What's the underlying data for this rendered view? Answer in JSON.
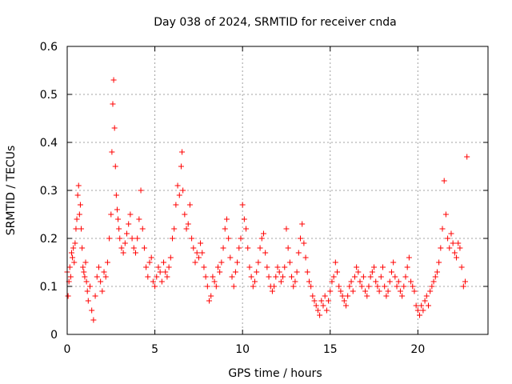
{
  "chart_data": {
    "type": "scatter",
    "title": "Day 038 of 2024, SRMTID for receiver cnda",
    "xlabel": "GPS time / hours",
    "ylabel": "SRMTID / TECUs",
    "xlim": [
      0,
      24
    ],
    "ylim": [
      0,
      0.6
    ],
    "xticks": [
      0,
      5,
      10,
      15,
      20
    ],
    "xtick_labels": [
      "0",
      "5",
      "10",
      "15",
      "20"
    ],
    "yticks": [
      0,
      0.1,
      0.2,
      0.3,
      0.4,
      0.5,
      0.6
    ],
    "ytick_labels": [
      "0",
      "0.1",
      "0.2",
      "0.3",
      "0.4",
      "0.5",
      "0.6"
    ],
    "grid": true,
    "marker": "+",
    "color": "#ff0000",
    "series": [
      {
        "name": "SRMTID",
        "x": [
          0.0,
          0.05,
          0.1,
          0.15,
          0.2,
          0.25,
          0.3,
          0.35,
          0.4,
          0.45,
          0.5,
          0.55,
          0.6,
          0.65,
          0.7,
          0.75,
          0.8,
          0.85,
          0.9,
          0.95,
          1.0,
          1.05,
          1.1,
          1.15,
          1.2,
          1.3,
          1.4,
          1.5,
          1.6,
          1.7,
          1.8,
          1.9,
          2.0,
          2.1,
          2.2,
          2.3,
          2.4,
          2.5,
          2.55,
          2.6,
          2.65,
          2.7,
          2.75,
          2.8,
          2.85,
          2.9,
          2.95,
          3.0,
          3.1,
          3.2,
          3.3,
          3.4,
          3.5,
          3.6,
          3.7,
          3.8,
          3.9,
          4.0,
          4.1,
          4.2,
          4.3,
          4.4,
          4.5,
          4.6,
          4.7,
          4.8,
          4.9,
          5.0,
          5.1,
          5.2,
          5.3,
          5.4,
          5.5,
          5.6,
          5.7,
          5.8,
          5.9,
          6.0,
          6.1,
          6.2,
          6.3,
          6.4,
          6.5,
          6.55,
          6.6,
          6.7,
          6.8,
          6.9,
          7.0,
          7.1,
          7.2,
          7.3,
          7.4,
          7.5,
          7.6,
          7.7,
          7.8,
          7.9,
          8.0,
          8.1,
          8.2,
          8.3,
          8.4,
          8.5,
          8.6,
          8.7,
          8.8,
          8.9,
          9.0,
          9.1,
          9.2,
          9.3,
          9.4,
          9.5,
          9.6,
          9.7,
          9.8,
          9.9,
          10.0,
          10.1,
          10.2,
          10.3,
          10.4,
          10.5,
          10.6,
          10.7,
          10.8,
          10.9,
          11.0,
          11.1,
          11.2,
          11.3,
          11.4,
          11.5,
          11.6,
          11.7,
          11.8,
          11.9,
          12.0,
          12.1,
          12.2,
          12.3,
          12.4,
          12.5,
          12.6,
          12.7,
          12.8,
          12.9,
          13.0,
          13.1,
          13.2,
          13.3,
          13.4,
          13.5,
          13.6,
          13.7,
          13.8,
          13.9,
          14.0,
          14.1,
          14.2,
          14.3,
          14.4,
          14.5,
          14.6,
          14.7,
          14.8,
          14.9,
          15.0,
          15.1,
          15.2,
          15.3,
          15.4,
          15.5,
          15.6,
          15.7,
          15.8,
          15.9,
          16.0,
          16.1,
          16.2,
          16.3,
          16.4,
          16.5,
          16.6,
          16.7,
          16.8,
          16.9,
          17.0,
          17.1,
          17.2,
          17.3,
          17.4,
          17.5,
          17.6,
          17.7,
          17.8,
          17.9,
          18.0,
          18.1,
          18.2,
          18.3,
          18.4,
          18.5,
          18.6,
          18.7,
          18.8,
          18.9,
          19.0,
          19.1,
          19.2,
          19.3,
          19.4,
          19.5,
          19.6,
          19.7,
          19.8,
          19.9,
          20.0,
          20.1,
          20.2,
          20.3,
          20.4,
          20.5,
          20.6,
          20.7,
          20.8,
          20.9,
          21.0,
          21.1,
          21.2,
          21.3,
          21.4,
          21.5,
          21.6,
          21.7,
          21.8,
          21.9,
          22.0,
          22.1,
          22.2,
          22.3,
          22.4,
          22.5,
          22.6,
          22.7,
          22.8
        ],
        "y": [
          0.13,
          0.08,
          0.11,
          0.14,
          0.12,
          0.17,
          0.16,
          0.18,
          0.15,
          0.19,
          0.22,
          0.24,
          0.29,
          0.31,
          0.25,
          0.27,
          0.22,
          0.18,
          0.14,
          0.13,
          0.12,
          0.15,
          0.11,
          0.09,
          0.07,
          0.1,
          0.05,
          0.03,
          0.08,
          0.12,
          0.14,
          0.11,
          0.09,
          0.13,
          0.12,
          0.15,
          0.2,
          0.25,
          0.38,
          0.48,
          0.53,
          0.43,
          0.35,
          0.29,
          0.26,
          0.24,
          0.22,
          0.2,
          0.18,
          0.17,
          0.19,
          0.21,
          0.23,
          0.25,
          0.2,
          0.18,
          0.17,
          0.2,
          0.24,
          0.3,
          0.22,
          0.18,
          0.14,
          0.12,
          0.15,
          0.16,
          0.11,
          0.1,
          0.12,
          0.14,
          0.13,
          0.11,
          0.15,
          0.13,
          0.12,
          0.14,
          0.16,
          0.2,
          0.22,
          0.27,
          0.31,
          0.29,
          0.35,
          0.38,
          0.3,
          0.25,
          0.22,
          0.23,
          0.27,
          0.2,
          0.18,
          0.15,
          0.17,
          0.16,
          0.19,
          0.17,
          0.14,
          0.12,
          0.1,
          0.07,
          0.08,
          0.12,
          0.11,
          0.1,
          0.14,
          0.13,
          0.15,
          0.18,
          0.22,
          0.24,
          0.2,
          0.16,
          0.12,
          0.1,
          0.13,
          0.15,
          0.18,
          0.2,
          0.27,
          0.24,
          0.22,
          0.18,
          0.14,
          0.12,
          0.1,
          0.11,
          0.13,
          0.15,
          0.18,
          0.2,
          0.21,
          0.17,
          0.14,
          0.12,
          0.1,
          0.09,
          0.1,
          0.12,
          0.14,
          0.13,
          0.11,
          0.12,
          0.14,
          0.22,
          0.18,
          0.15,
          0.12,
          0.1,
          0.11,
          0.13,
          0.17,
          0.2,
          0.23,
          0.19,
          0.16,
          0.13,
          0.11,
          0.1,
          0.08,
          0.07,
          0.06,
          0.05,
          0.04,
          0.07,
          0.06,
          0.08,
          0.05,
          0.07,
          0.09,
          0.11,
          0.12,
          0.15,
          0.13,
          0.1,
          0.09,
          0.08,
          0.07,
          0.06,
          0.08,
          0.1,
          0.11,
          0.09,
          0.12,
          0.14,
          0.13,
          0.11,
          0.1,
          0.12,
          0.09,
          0.08,
          0.1,
          0.12,
          0.13,
          0.14,
          0.11,
          0.1,
          0.09,
          0.12,
          0.14,
          0.1,
          0.08,
          0.09,
          0.11,
          0.13,
          0.15,
          0.12,
          0.1,
          0.11,
          0.09,
          0.08,
          0.1,
          0.12,
          0.14,
          0.16,
          0.11,
          0.1,
          0.09,
          0.06,
          0.05,
          0.04,
          0.06,
          0.05,
          0.07,
          0.08,
          0.06,
          0.09,
          0.1,
          0.11,
          0.12,
          0.13,
          0.15,
          0.18,
          0.22,
          0.32,
          0.25,
          0.2,
          0.18,
          0.21,
          0.19,
          0.17,
          0.16,
          0.19,
          0.18,
          0.14,
          0.1,
          0.11,
          0.37
        ]
      }
    ]
  }
}
